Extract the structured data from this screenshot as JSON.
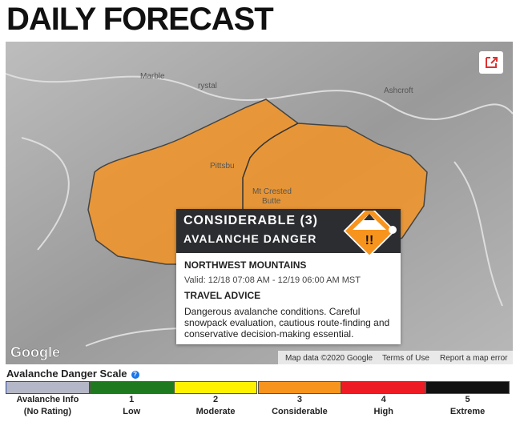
{
  "header": {
    "title": "DAILY FORECAST"
  },
  "map": {
    "place_labels": [
      "Marble",
      "rystal",
      "Ashcroft",
      "Pittsbu",
      "Mt Crested",
      "Butte"
    ],
    "logo": "Google",
    "attribution": "Map data ©2020 Google",
    "terms": "Terms of Use",
    "report": "Report a map error"
  },
  "popup": {
    "danger": "CONSIDERABLE (3)",
    "danger_sub": "AVALANCHE DANGER",
    "zone": "NORTHWEST MOUNTAINS",
    "valid": "Valid: 12/18 07:08 AM - 12/19 06:00 AM MST",
    "advice_title": "TRAVEL ADVICE",
    "advice": "Dangerous avalanche conditions. Careful snowpack evaluation, cautious route-finding and conservative decision-making essential."
  },
  "scale": {
    "title": "Avalanche Danger Scale",
    "help": "?",
    "levels": [
      {
        "number": "Avalanche Info",
        "label": "(No Rating)",
        "color": "#b3b7c8"
      },
      {
        "number": "1",
        "label": "Low",
        "color": "#1f7a1f"
      },
      {
        "number": "2",
        "label": "Moderate",
        "color": "#fff200"
      },
      {
        "number": "3",
        "label": "Considerable",
        "color": "#f7941e"
      },
      {
        "number": "4",
        "label": "High",
        "color": "#ed1c24"
      },
      {
        "number": "5",
        "label": "Extreme",
        "color": "#111111"
      }
    ]
  }
}
